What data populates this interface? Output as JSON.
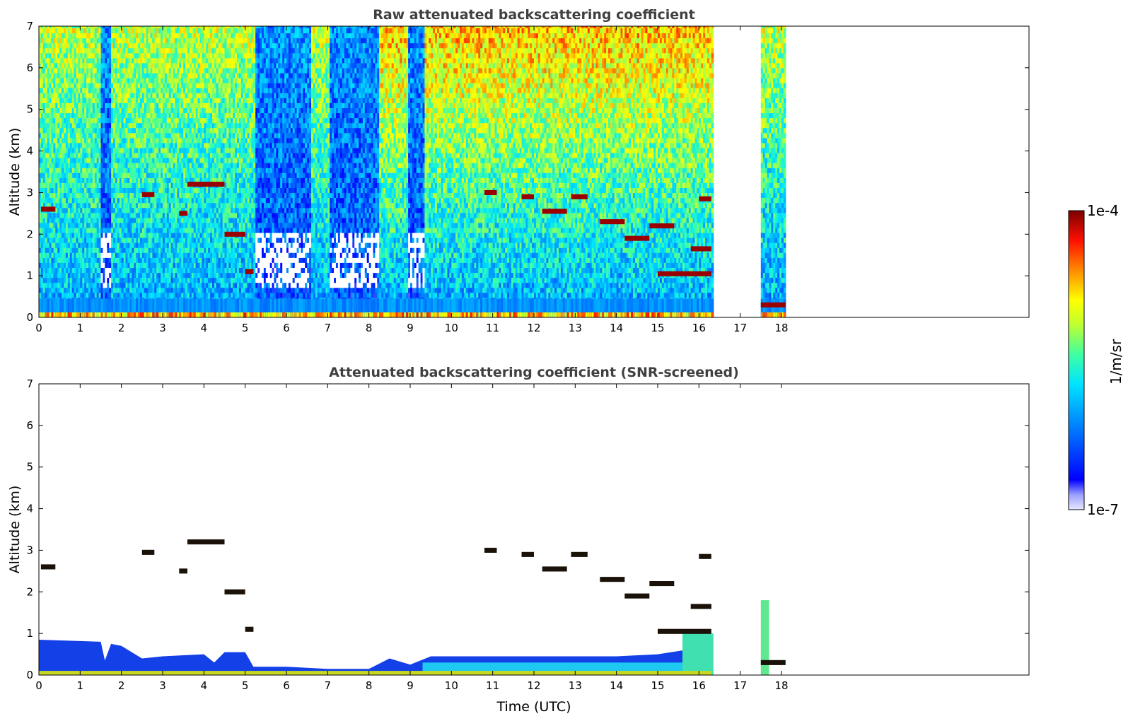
{
  "chart_data": [
    {
      "type": "heatmap",
      "title": "Raw attenuated backscattering coefficient",
      "xlabel": "",
      "ylabel": "Altitude (km)",
      "xlim": [
        0,
        24
      ],
      "ylim": [
        0,
        7
      ],
      "xticks": [
        "0",
        "1",
        "2",
        "3",
        "4",
        "5",
        "6",
        "7",
        "8",
        "9",
        "10",
        "11",
        "12",
        "13",
        "14",
        "15",
        "16",
        "17",
        "18"
      ],
      "yticks": [
        "0",
        "1",
        "2",
        "3",
        "4",
        "5",
        "6",
        "7"
      ],
      "data_gaps": [
        [
          16.35,
          17.5
        ],
        [
          18.1,
          24
        ]
      ],
      "clear_sky_columns": [
        [
          1.5,
          1.75
        ],
        [
          5.2,
          6.55
        ],
        [
          7.0,
          8.2
        ],
        [
          8.9,
          9.3
        ]
      ],
      "cloud_layers": [
        {
          "t": [
            0.05,
            0.4
          ],
          "alt_km": 2.6
        },
        {
          "t": [
            2.5,
            2.8
          ],
          "alt_km": 2.95
        },
        {
          "t": [
            3.4,
            3.6
          ],
          "alt_km": 2.5
        },
        {
          "t": [
            3.6,
            4.5
          ],
          "alt_km": 3.2
        },
        {
          "t": [
            4.5,
            5.0
          ],
          "alt_km": 2.0
        },
        {
          "t": [
            5.0,
            5.2
          ],
          "alt_km": 1.1
        },
        {
          "t": [
            10.8,
            11.1
          ],
          "alt_km": 3.0
        },
        {
          "t": [
            11.7,
            12.0
          ],
          "alt_km": 2.9
        },
        {
          "t": [
            12.2,
            12.8
          ],
          "alt_km": 2.55
        },
        {
          "t": [
            12.9,
            13.3
          ],
          "alt_km": 2.9
        },
        {
          "t": [
            13.6,
            14.2
          ],
          "alt_km": 2.3
        },
        {
          "t": [
            14.2,
            14.8
          ],
          "alt_km": 1.9
        },
        {
          "t": [
            14.8,
            15.4
          ],
          "alt_km": 2.2
        },
        {
          "t": [
            15.0,
            16.3
          ],
          "alt_km": 1.05
        },
        {
          "t": [
            15.8,
            16.3
          ],
          "alt_km": 1.65
        },
        {
          "t": [
            16.0,
            16.3
          ],
          "alt_km": 2.85
        },
        {
          "t": [
            17.5,
            18.1
          ],
          "alt_km": 0.3
        }
      ]
    },
    {
      "type": "heatmap",
      "title": "Attenuated backscattering coefficient (SNR-screened)",
      "xlabel": "Time (UTC)",
      "ylabel": "Altitude (km)",
      "xlim": [
        0,
        24
      ],
      "ylim": [
        0,
        7
      ],
      "xticks": [
        "0",
        "1",
        "2",
        "3",
        "4",
        "5",
        "6",
        "7",
        "8",
        "9",
        "10",
        "11",
        "12",
        "13",
        "14",
        "15",
        "16",
        "17",
        "18"
      ],
      "yticks": [
        "0",
        "1",
        "2",
        "3",
        "4",
        "5",
        "6",
        "7"
      ],
      "data_gaps": [
        [
          16.35,
          17.5
        ],
        [
          18.1,
          24
        ]
      ],
      "boundary_layer_top_km": [
        [
          0,
          0.85
        ],
        [
          1.5,
          0.8
        ],
        [
          1.6,
          0.35
        ],
        [
          1.75,
          0.75
        ],
        [
          2.0,
          0.7
        ],
        [
          2.5,
          0.4
        ],
        [
          3.0,
          0.45
        ],
        [
          4.0,
          0.5
        ],
        [
          4.25,
          0.3
        ],
        [
          4.5,
          0.55
        ],
        [
          5.0,
          0.55
        ],
        [
          5.2,
          0.2
        ],
        [
          6.0,
          0.2
        ],
        [
          7.0,
          0.15
        ],
        [
          8.0,
          0.15
        ],
        [
          8.5,
          0.4
        ],
        [
          9.0,
          0.25
        ],
        [
          9.5,
          0.45
        ],
        [
          11.0,
          0.45
        ],
        [
          13.0,
          0.45
        ],
        [
          14.0,
          0.45
        ],
        [
          15.0,
          0.5
        ],
        [
          16.3,
          0.7
        ]
      ]
    }
  ],
  "colorbar": {
    "label": "1/m/sr",
    "max_label": "1e-4",
    "min_label": "1e-7",
    "scale": "log",
    "range": [
      1e-07,
      0.0001
    ],
    "colormap": "jet",
    "colors": [
      "#d0d4ff",
      "#0000ff",
      "#0080ff",
      "#00e0ff",
      "#40ff80",
      "#ffff00",
      "#ff8000",
      "#ff0000",
      "#800000"
    ]
  }
}
